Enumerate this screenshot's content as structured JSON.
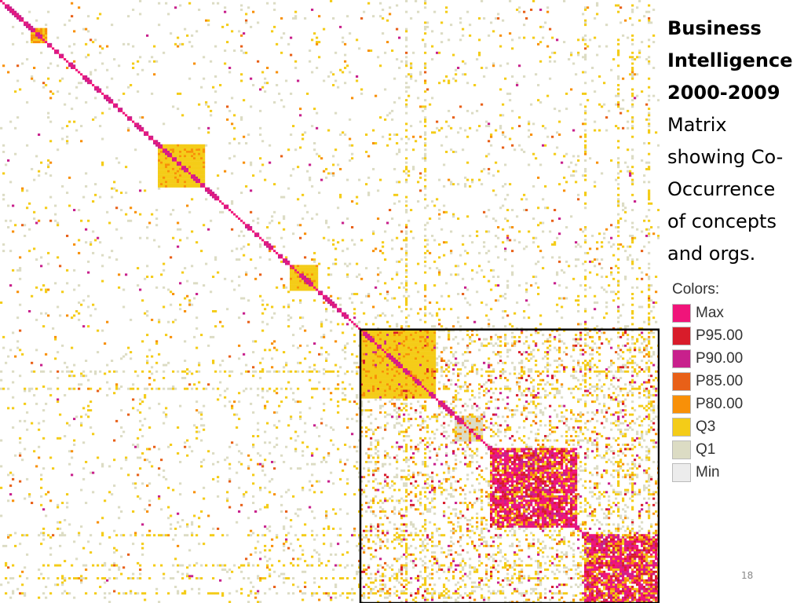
{
  "slide": {
    "title_lines": [
      "Business",
      "Intelligence",
      "2000-2009"
    ],
    "subtitle_lines": [
      "Matrix",
      "showing Co-",
      "Occurrence",
      "of concepts",
      "and orgs."
    ],
    "page_number": "18"
  },
  "chart_data": {
    "type": "heatmap",
    "title": "Business Intelligence 2000-2009",
    "subtitle": "Matrix showing Co-Occurrence of concepts and orgs.",
    "matrix_size": 280,
    "symmetric": true,
    "diagonal_level": "Max",
    "legend": {
      "title": "Colors:",
      "items": [
        {
          "label": "Max",
          "color": "#f0147a"
        },
        {
          "label": "P95.00",
          "color": "#d81c2a"
        },
        {
          "label": "P90.00",
          "color": "#c8208c"
        },
        {
          "label": "P85.00",
          "color": "#e86018"
        },
        {
          "label": "P80.00",
          "color": "#f89008"
        },
        {
          "label": "Q3",
          "color": "#f4cc18"
        },
        {
          "label": "Q1",
          "color": "#dcdcc4"
        },
        {
          "label": "Min",
          "color": "#ececec"
        }
      ]
    },
    "highlighted_block": {
      "start_index": 153,
      "end_index": 280
    },
    "dense_clusters": [
      {
        "start": 67,
        "end": 87,
        "level": "Q3"
      },
      {
        "start": 123,
        "end": 135,
        "level": "Q3"
      },
      {
        "start": 153,
        "end": 185,
        "level": "Q3"
      },
      {
        "start": 193,
        "end": 205,
        "level": "Q1"
      },
      {
        "start": 208,
        "end": 245,
        "level": "P95.00"
      },
      {
        "start": 248,
        "end": 280,
        "level": "Max"
      },
      {
        "start": 13,
        "end": 20,
        "level": "P80.00"
      }
    ]
  }
}
